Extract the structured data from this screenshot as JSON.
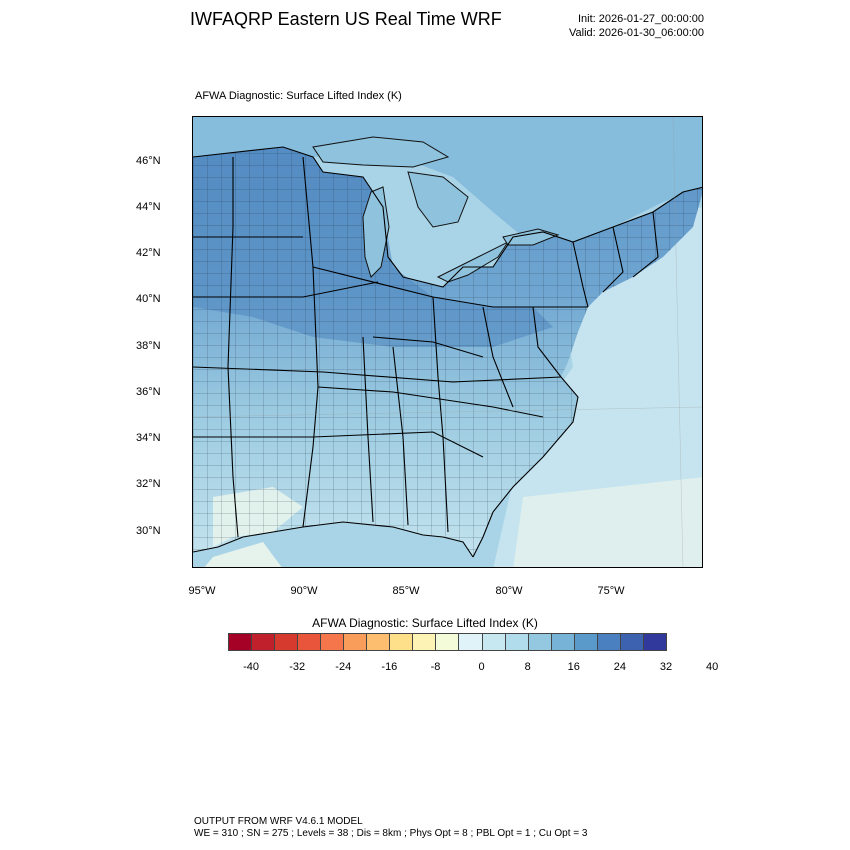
{
  "header": {
    "title": "IWFAQRP Eastern US Real Time WRF",
    "init": "Init: 2026-01-27_00:00:00",
    "valid": "Valid: 2026-01-30_06:00:00"
  },
  "map": {
    "plot_title": "AFWA Diagnostic: Surface Lifted Index   (K)",
    "lat_labels": [
      "46°N",
      "44°N",
      "42°N",
      "40°N",
      "38°N",
      "36°N",
      "34°N",
      "32°N",
      "30°N"
    ],
    "lon_labels": [
      "95°W",
      "90°W",
      "85°W",
      "80°W",
      "75°W"
    ],
    "region": "Eastern United States with county boundaries",
    "colors": {
      "ocean_far": "#c8e6f0",
      "ocean_near": "#a9d3e6",
      "land_base": "#9ccbe1",
      "north_dark": "#5b93c7",
      "mid_blue": "#7eb3d6",
      "gulf_light": "#e6f3ec",
      "lakes": "#8fc3dd"
    }
  },
  "colorbar": {
    "title": "AFWA Diagnostic: Surface Lifted Index  (K)",
    "tick_labels": [
      "-40",
      "-32",
      "-24",
      "-16",
      "-8",
      "0",
      "8",
      "16",
      "24",
      "32",
      "40"
    ],
    "swatches": [
      "#a50026",
      "#c0202b",
      "#d63a2f",
      "#e8553a",
      "#f4764a",
      "#f99d5a",
      "#fdbf6f",
      "#fee08b",
      "#fdf3b4",
      "#f3fbd8",
      "#e0f3f8",
      "#c8e8f1",
      "#b1dcec",
      "#93c8e0",
      "#77b3d6",
      "#5a9acb",
      "#4a80bf",
      "#3d62b0",
      "#313a9c"
    ]
  },
  "footer": {
    "line1": "OUTPUT FROM WRF V4.6.1 MODEL",
    "line2": "WE = 310 ; SN = 275 ; Levels = 38 ; Dis = 8km ; Phys Opt = 8 ; PBL Opt = 1 ; Cu Opt = 3"
  }
}
